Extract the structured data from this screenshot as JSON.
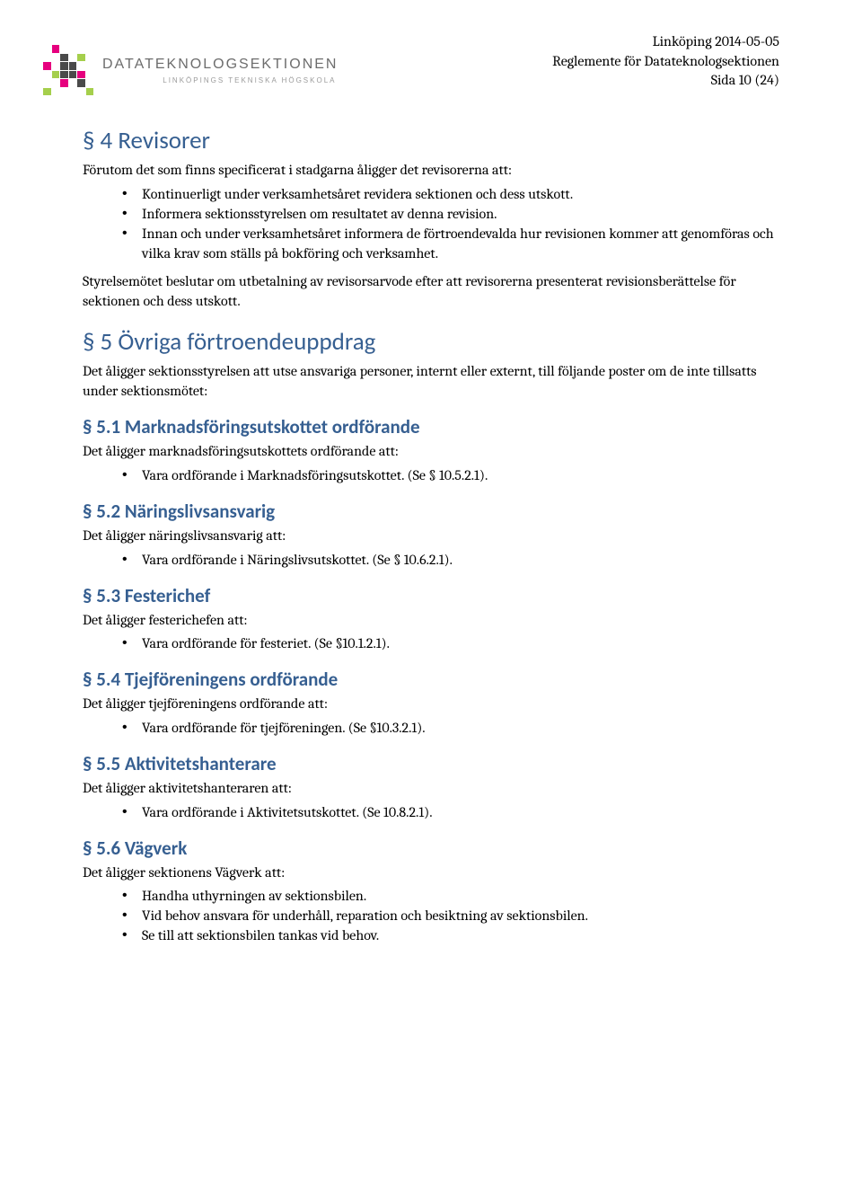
{
  "colors": {
    "heading": "#365f91",
    "text": "#000000",
    "logo_primary": "#6d6d6d",
    "logo_sub": "#9b9b9b",
    "background": "#ffffff"
  },
  "typography": {
    "heading_font": "Calibri",
    "body_font": "Cambria",
    "h1_size_pt": 20,
    "h2_size_pt": 16,
    "body_size_pt": 12
  },
  "logo": {
    "text": "DATATEKNOLOGSEKTIONEN",
    "subtext": "LINKÖPINGS TEKNISKA HÖGSKOLA",
    "square_colors": [
      "#ffffff",
      "#e6007e",
      "#ffffff",
      "#ffffff",
      "#ffffff",
      "#ffffff",
      "#ffffff",
      "#ffffff",
      "#4a4a4a",
      "#ffffff",
      "#a5cf4c",
      "#ffffff",
      "#e6007e",
      "#ffffff",
      "#4a4a4a",
      "#4a4a4a",
      "#ffffff",
      "#ffffff",
      "#ffffff",
      "#a5cf4c",
      "#4a4a4a",
      "#4a4a4a",
      "#e6007e",
      "#ffffff",
      "#ffffff",
      "#ffffff",
      "#e6007e",
      "#ffffff",
      "#4a4a4a",
      "#ffffff",
      "#a5cf4c",
      "#ffffff",
      "#ffffff",
      "#ffffff",
      "#ffffff",
      "#a5cf4c"
    ]
  },
  "header": {
    "line1": "Linköping 2014-05-05",
    "line2": "Reglemente för Datateknologsektionen",
    "line3": "Sida 10 (24)"
  },
  "s4": {
    "title": "§ 4 Revisorer",
    "intro": "Förutom det som finns specificerat i stadgarna åligger det revisorerna att:",
    "items": [
      "Kontinuerligt under verksamhetsåret revidera sektionen och dess utskott.",
      "Informera sektionsstyrelsen om resultatet av denna revision.",
      "Innan och under verksamhetsåret informera de förtroendevalda hur revisionen kommer att genomföras och vilka krav som ställs på bokföring och verksamhet."
    ],
    "para2": "Styrelsemötet beslutar om utbetalning av revisorsarvode efter att revisorerna presenterat revisionsberättelse för sektionen och dess utskott."
  },
  "s5": {
    "title": "§ 5 Övriga förtroendeuppdrag",
    "intro": "Det åligger sektionsstyrelsen att utse ansvariga personer, internt eller externt, till följande poster om de inte tillsatts under sektionsmötet:",
    "s5_1": {
      "title": "§ 5.1 Marknadsföringsutskottet ordförande",
      "intro": "Det åligger marknadsföringsutskottets ordförande att:",
      "items": [
        "Vara ordförande i Marknadsföringsutskottet. (Se § 10.5.2.1)."
      ]
    },
    "s5_2": {
      "title": "§ 5.2 Näringslivsansvarig",
      "intro": "Det åligger näringslivsansvarig att:",
      "items": [
        "Vara ordförande i Näringslivsutskottet. (Se § 10.6.2.1)."
      ]
    },
    "s5_3": {
      "title": "§ 5.3 Festerichef",
      "intro": "Det åligger festerichefen att:",
      "items": [
        "Vara ordförande för festeriet. (Se §10.1.2.1)."
      ]
    },
    "s5_4": {
      "title": "§ 5.4 Tjejföreningens ordförande",
      "intro": "Det åligger tjejföreningens ordförande att:",
      "items": [
        "Vara ordförande för tjejföreningen. (Se §10.3.2.1)."
      ]
    },
    "s5_5": {
      "title": "§ 5.5 Aktivitetshanterare",
      "intro": "Det åligger aktivitetshanteraren att:",
      "items": [
        "Vara ordförande i Aktivitetsutskottet. (Se 10.8.2.1)."
      ]
    },
    "s5_6": {
      "title": "§ 5.6 Vägverk",
      "intro": "Det åligger sektionens Vägverk att:",
      "items": [
        "Handha uthyrningen av sektionsbilen.",
        "Vid behov ansvara för underhåll, reparation och besiktning av sektionsbilen.",
        "Se till att sektionsbilen tankas vid behov."
      ]
    }
  }
}
